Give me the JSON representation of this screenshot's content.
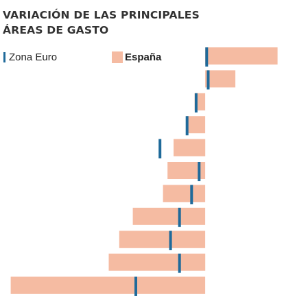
{
  "title_line1": "VARIACIÓN DE LAS PRINCIPALES",
  "title_line2": "ÁREAS DE GASTO",
  "colors": {
    "spain": "#f5bba2",
    "euro": "#1f6a9a"
  },
  "chart_data": {
    "type": "bar",
    "orientation": "horizontal",
    "grid": false,
    "legend_placement": "top",
    "series": [
      {
        "name": "Zona Euro",
        "style": "marker",
        "values": [
          0.1,
          0.2,
          -0.6,
          -1.2,
          -3.0,
          -0.4,
          -0.9,
          -1.7,
          -2.3,
          -1.7,
          -4.6
        ]
      },
      {
        "name": "España",
        "style": "bar",
        "values": [
          4.8,
          2.0,
          -0.7,
          -1.2,
          -2.1,
          -2.5,
          -2.8,
          -4.8,
          -5.7,
          -6.4,
          -12.9
        ]
      }
    ],
    "xlim": [
      -13.2,
      5.0
    ],
    "zero_line": "right"
  }
}
